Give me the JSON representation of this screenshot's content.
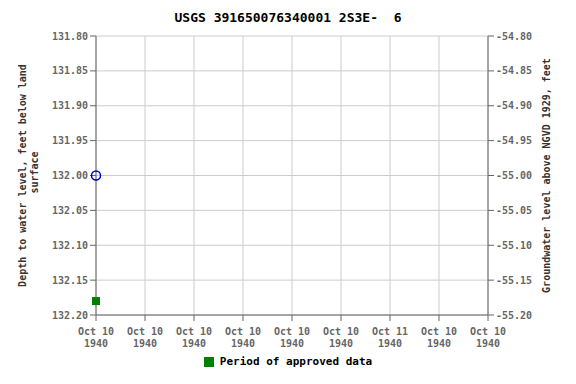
{
  "chart_data": {
    "type": "scatter",
    "title": "USGS 391650076340001 2S3E-  6",
    "y_label": "Depth to water level, feet below land\n surface",
    "y2_label": "Groundwater level above NGVD 1929, feet",
    "categories": [
      "Oct 10\n1940",
      "Oct 10\n1940",
      "Oct 10\n1940",
      "Oct 10\n1940",
      "Oct 10\n1940",
      "Oct 10\n1940",
      "Oct 11\n1940"
    ],
    "series": [
      {
        "color": "#0000cc",
        "marker": "circle_open",
        "values": [
          null,
          null,
          null,
          132.0,
          null,
          null,
          null
        ]
      },
      {
        "name": "Period of approved data",
        "color": "#008000",
        "marker": "square",
        "values": [
          null,
          null,
          null,
          132.18,
          null,
          null,
          null
        ]
      }
    ],
    "ylim": [
      132.2,
      131.8
    ],
    "yticks": [
      {
        "value": 131.8,
        "label": "131.80"
      },
      {
        "value": 131.85,
        "label": "131.85"
      },
      {
        "value": 131.9,
        "label": "131.90"
      },
      {
        "value": 131.95,
        "label": "131.95"
      },
      {
        "value": 132.0,
        "label": "132.00"
      },
      {
        "value": 132.05,
        "label": "132.05"
      },
      {
        "value": 132.1,
        "label": "132.10"
      },
      {
        "value": 132.15,
        "label": "132.15"
      },
      {
        "value": 132.2,
        "label": "132.20"
      }
    ],
    "y2lim": [
      -55.2,
      -54.8
    ],
    "y2ticks": [
      {
        "value": -54.8,
        "label": "-54.80"
      },
      {
        "value": -54.85,
        "label": "-54.85"
      },
      {
        "value": -54.9,
        "label": "-54.90"
      },
      {
        "value": -54.95,
        "label": "-54.95"
      },
      {
        "value": -55.0,
        "label": "-55.00"
      },
      {
        "value": -55.05,
        "label": "-55.05"
      },
      {
        "value": -55.1,
        "label": "-55.10"
      },
      {
        "value": -55.15,
        "label": "-55.15"
      },
      {
        "value": -55.2,
        "label": "-55.20"
      }
    ],
    "grid": true,
    "legend": "bottom"
  }
}
